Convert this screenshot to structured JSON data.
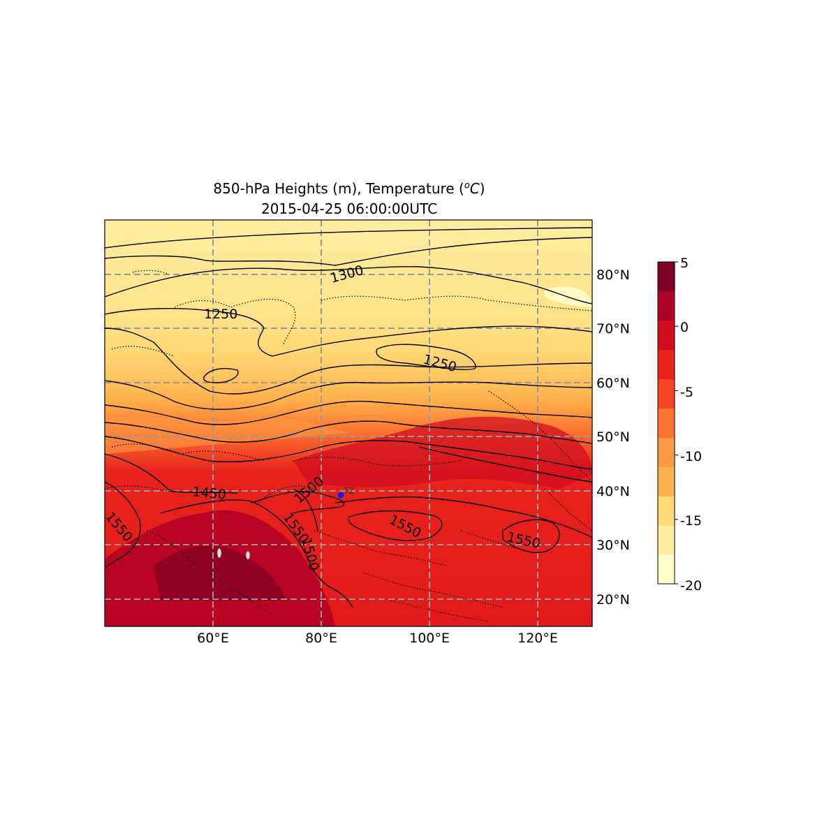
{
  "title": {
    "line1_prefix": "850-hPa Heights (m), Temperature (",
    "line1_unit_sup": "o",
    "line1_unit": "C",
    "line1_suffix": ")",
    "line2": "2015-04-25 06:00:00UTC"
  },
  "map": {
    "lon_range": [
      40,
      130
    ],
    "lat_range": [
      15,
      90
    ],
    "x_ticks": [
      "60°E",
      "80°E",
      "100°E",
      "120°E"
    ],
    "y_ticks": [
      "80°N",
      "70°N",
      "60°N",
      "50°N",
      "40°N",
      "30°N",
      "20°N"
    ],
    "gridlines": "dashed gray",
    "contour_labels": [
      "1300",
      "1250",
      "1250",
      "1450",
      "1500",
      "1550",
      "1500",
      "1550",
      "1550",
      "1550"
    ],
    "station": {
      "label": "TZ",
      "color": "#1a1aff"
    }
  },
  "colorbar": {
    "ticks": [
      "5",
      "0",
      "-5",
      "-10",
      "-15",
      "-20"
    ],
    "range": [
      -20,
      5
    ],
    "step": 2.5,
    "colors": [
      "#fffccc",
      "#ffeda0",
      "#fed976",
      "#feb24c",
      "#fd9a44",
      "#fc7430",
      "#f74325",
      "#e8221c",
      "#d10e20",
      "#b10026",
      "#800026"
    ],
    "cmap": "YlOrRd"
  }
}
